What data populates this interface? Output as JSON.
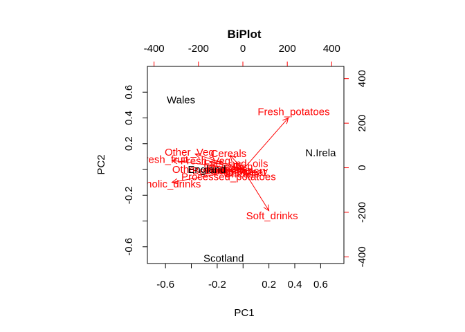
{
  "chart_data": {
    "type": "scatter",
    "title": "BiPlot",
    "xlabel": "PC1",
    "ylabel": "PC2",
    "xlim": [
      -0.74,
      0.78
    ],
    "ylim": [
      -0.73,
      0.8
    ],
    "x_ticks": [
      "-0.6",
      "-0.2",
      "0.2",
      "0.4",
      "0.6"
    ],
    "x_tick_values": [
      -0.6,
      -0.2,
      0.2,
      0.4,
      0.6
    ],
    "x_minor_ticks": [
      -0.4,
      0.0
    ],
    "y_ticks": [
      "0.6",
      "0.4",
      "0.2",
      "-0.2",
      "-0.6"
    ],
    "y_tick_values": [
      0.6,
      0.4,
      0.2,
      -0.2,
      -0.6
    ],
    "y_minor_ticks": [
      0.0,
      -0.4
    ],
    "top_ticks": [
      "-400",
      "-200",
      "0",
      "200",
      "400"
    ],
    "top_tick_values": [
      -400,
      -200,
      0,
      200,
      400
    ],
    "right_ticks": [
      "400",
      "200",
      "0",
      "-200",
      "-400"
    ],
    "right_tick_values": [
      400,
      200,
      0,
      -200,
      -400
    ],
    "loading_scale": [
      -430,
      455
    ],
    "axis_color": "#000000",
    "loading_color": "#ff0000",
    "grid": false,
    "countries": [
      {
        "label": "Wales",
        "x": -0.48,
        "y": 0.54
      },
      {
        "label": "N.Irela",
        "x": 0.6,
        "y": 0.13
      },
      {
        "label": "Scotland",
        "x": -0.15,
        "y": -0.69
      },
      {
        "label": "England",
        "x": -0.28,
        "y": 0.0
      }
    ],
    "loadings": [
      {
        "label": "Fresh_potatoes",
        "x": 0.35,
        "y": 0.4
      },
      {
        "label": "Soft_drinks",
        "x": 0.2,
        "y": -0.32
      },
      {
        "label": "Fresh_fruit",
        "x": -0.55,
        "y": 0.07
      },
      {
        "label": "Alcoholic_drinks",
        "x": -0.55,
        "y": -0.1
      },
      {
        "label": "Other_Veg",
        "x": -0.37,
        "y": 0.12
      },
      {
        "label": "Cereals",
        "x": -0.1,
        "y": 0.11
      },
      {
        "label": "Fresh_Veg",
        "x": -0.26,
        "y": 0.06
      },
      {
        "label": "Fats_and_oils",
        "x": -0.05,
        "y": 0.04
      },
      {
        "label": "Other_meat",
        "x": -0.3,
        "y": 0.0
      },
      {
        "label": "Sugars",
        "x": -0.1,
        "y": 0.0
      },
      {
        "label": "Meat",
        "x": 0.08,
        "y": -0.02
      },
      {
        "label": "Beverages",
        "x": -0.18,
        "y": -0.01
      },
      {
        "label": "Processed_potatoes",
        "x": -0.1,
        "y": -0.05
      },
      {
        "label": "Confectionery",
        "x": -0.05,
        "y": -0.01
      },
      {
        "label": "Cheese",
        "x": -0.01,
        "y": -0.03
      },
      {
        "label": "Fish",
        "x": 0.0,
        "y": 0.02
      }
    ]
  }
}
